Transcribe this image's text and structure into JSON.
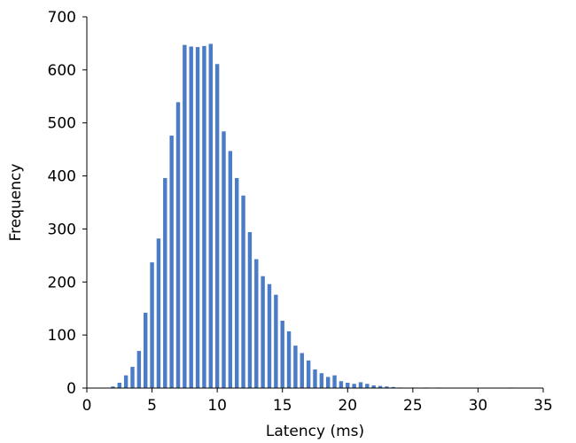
{
  "chart_data": {
    "type": "bar",
    "xlabel": "Latency (ms)",
    "ylabel": "Frequency",
    "xlim": [
      0,
      35
    ],
    "ylim": [
      0,
      700
    ],
    "xticks": [
      0,
      5,
      10,
      15,
      20,
      25,
      30,
      35
    ],
    "yticks": [
      0,
      100,
      200,
      300,
      400,
      500,
      600,
      700
    ],
    "grid": false,
    "bar_color": "#4a7cc7",
    "series": [
      {
        "x": [
          2.0,
          2.5,
          3.0,
          3.5,
          4.0,
          4.5,
          5.0,
          5.5,
          6.0,
          6.5,
          7.0,
          7.5,
          8.0,
          8.5,
          9.0,
          9.5,
          10.0,
          10.5,
          11.0,
          11.5,
          12.0,
          12.5,
          13.0,
          13.5,
          14.0,
          14.5,
          15.0,
          15.5,
          16.0,
          16.5,
          17.0,
          17.5,
          18.0,
          18.5,
          19.0,
          19.5,
          20.0,
          20.5,
          21.0,
          21.5,
          22.0,
          22.5,
          23.0,
          23.5,
          24.0,
          25.0,
          26.0,
          27.0,
          32.5
        ],
        "values": [
          3,
          10,
          24,
          40,
          70,
          142,
          237,
          282,
          396,
          476,
          539,
          647,
          644,
          643,
          645,
          649,
          611,
          484,
          447,
          396,
          363,
          294,
          243,
          211,
          196,
          176,
          127,
          107,
          80,
          66,
          52,
          35,
          28,
          21,
          24,
          13,
          10,
          8,
          11,
          8,
          5,
          4,
          3,
          2,
          1,
          1,
          1,
          1,
          1
        ]
      }
    ]
  }
}
